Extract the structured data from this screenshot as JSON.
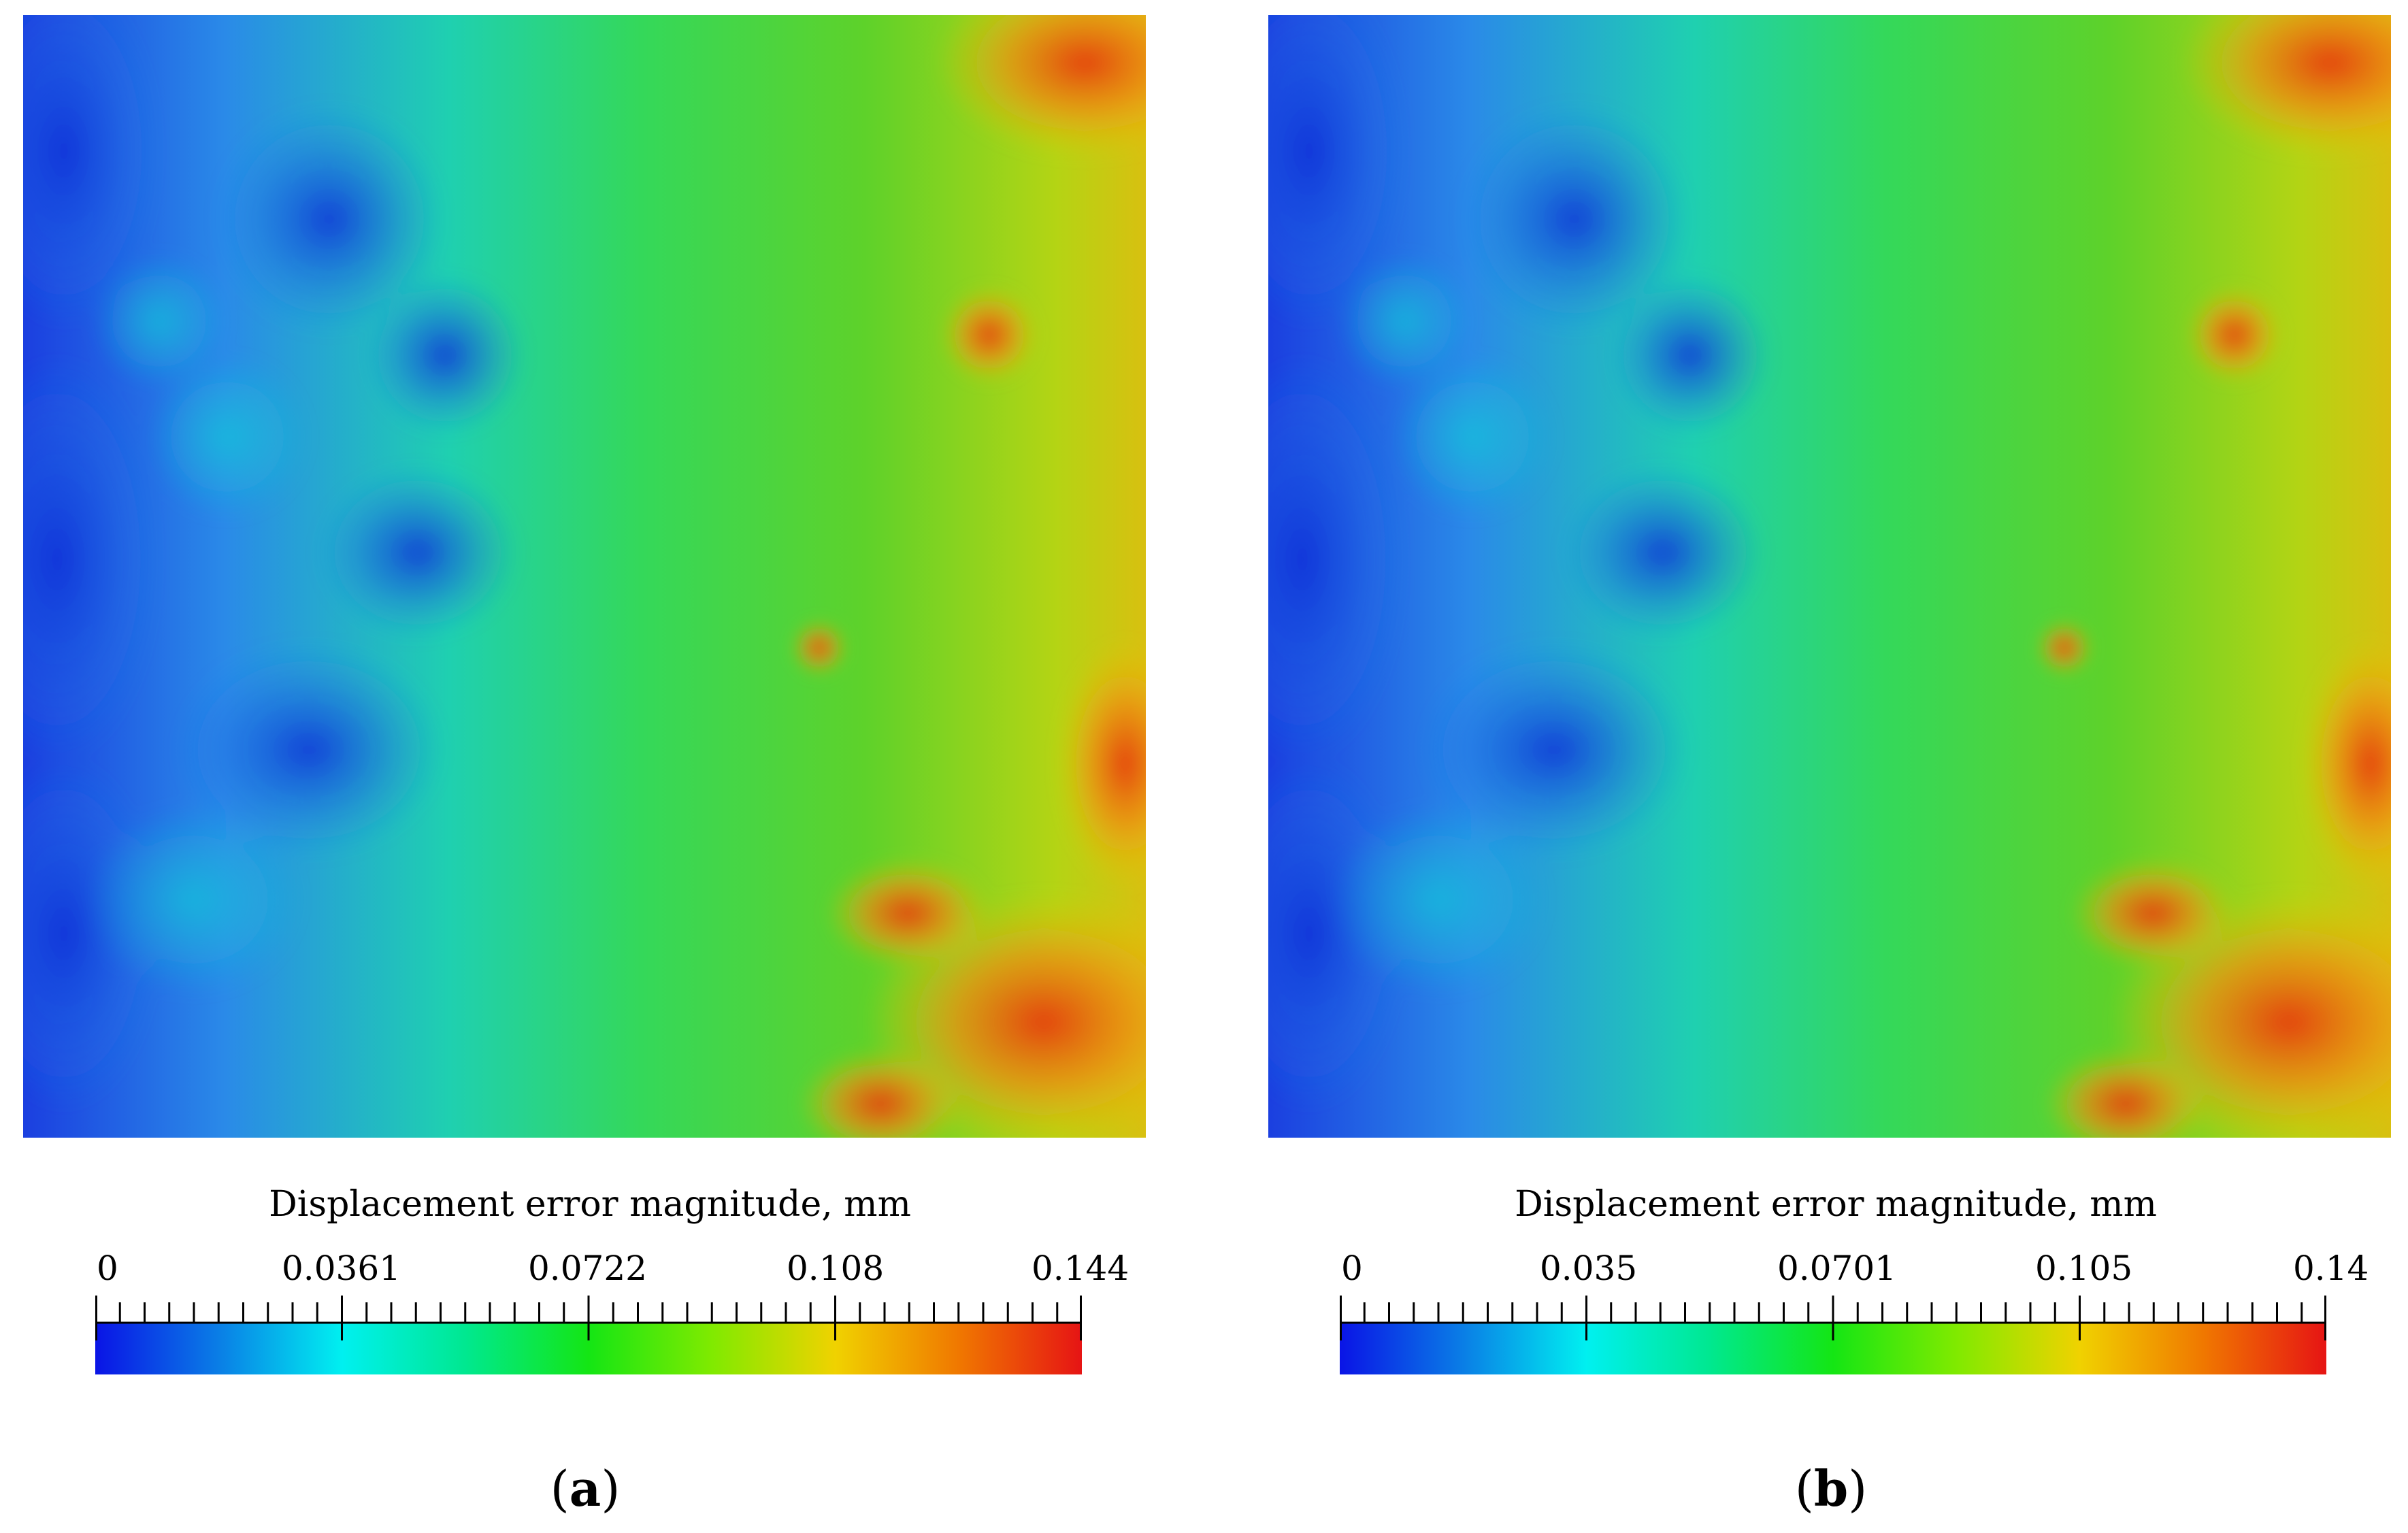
{
  "panels": [
    {
      "id": "a",
      "caption_letter": "a",
      "colorbar": {
        "title": "Displacement error magnitude, mm",
        "ticks": [
          "0",
          "0.0361",
          "0.0722",
          "0.108",
          "0.144"
        ],
        "min": 0,
        "max": 0.144
      }
    },
    {
      "id": "b",
      "caption_letter": "b",
      "colorbar": {
        "title": "Displacement error magnitude, mm",
        "ticks": [
          "0",
          "0.035",
          "0.0701",
          "0.105",
          "0.14"
        ],
        "min": 0,
        "max": 0.14
      }
    }
  ],
  "colormap": [
    "#0a14e6",
    "#0a7ee6",
    "#00f0f0",
    "#00e890",
    "#14e614",
    "#c8f000",
    "#f0d200",
    "#f07800",
    "#e61414"
  ]
}
